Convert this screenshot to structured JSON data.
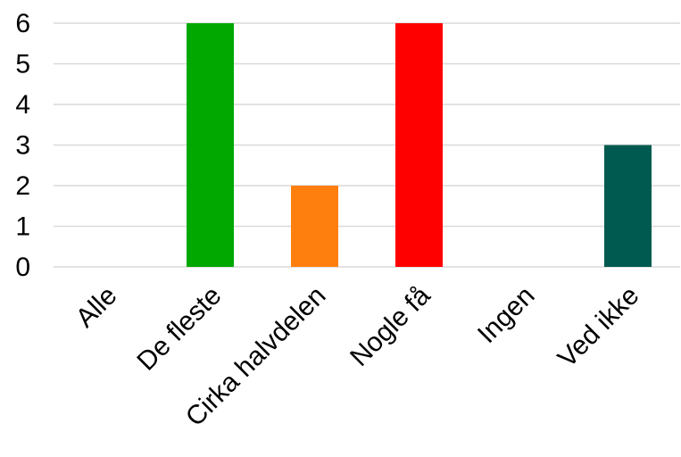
{
  "chart_data": {
    "type": "bar",
    "categories": [
      "Alle",
      "De fleste",
      "Cirka halvdelen",
      "Nogle få",
      "Ingen",
      "Ved ikke"
    ],
    "values": [
      0,
      6,
      2,
      6,
      0,
      3
    ],
    "colors": [
      "#00a800",
      "#00a800",
      "#ff7f0e",
      "#ff0000",
      "#00a800",
      "#005a50"
    ],
    "title": "",
    "xlabel": "",
    "ylabel": "",
    "ylim": [
      0,
      6
    ],
    "yticks": [
      0,
      1,
      2,
      3,
      4,
      5,
      6
    ],
    "grid": true,
    "legend": "none"
  }
}
